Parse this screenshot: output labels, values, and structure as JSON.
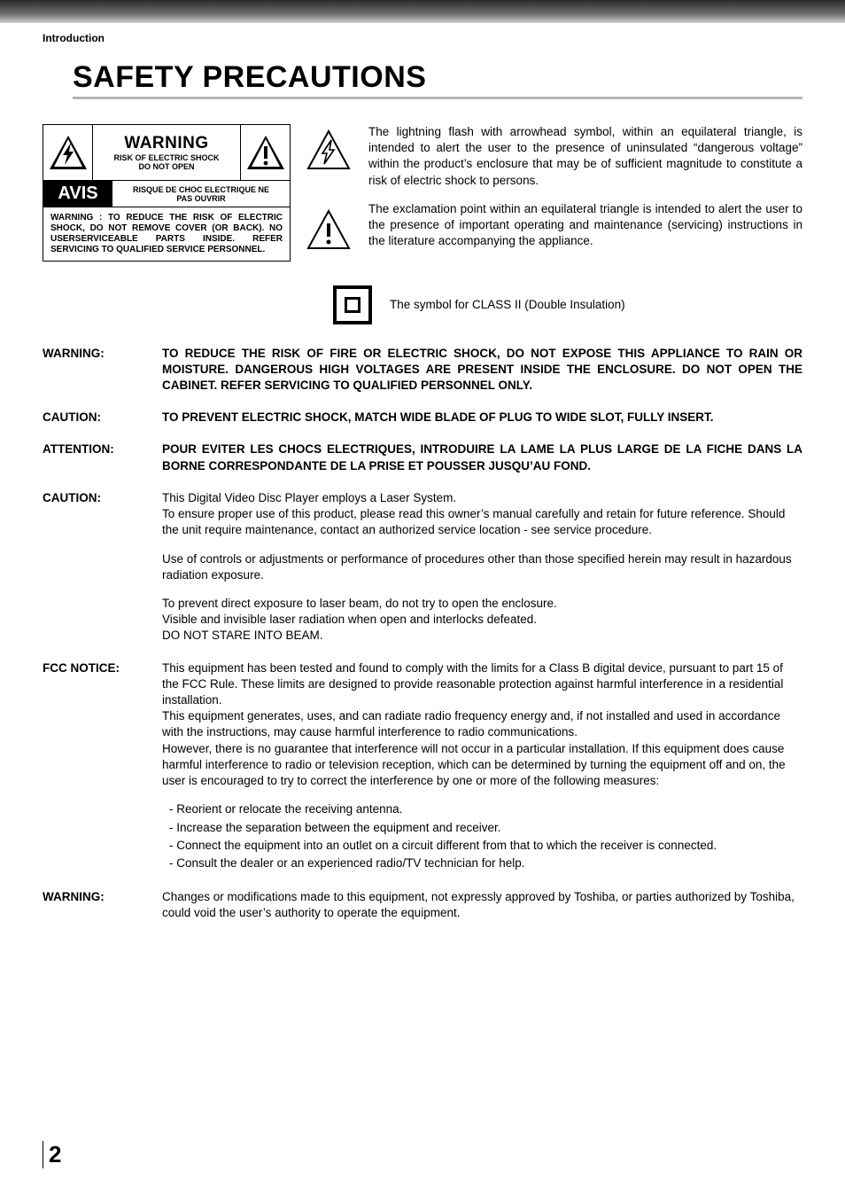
{
  "header": {
    "section_label": "Introduction",
    "title": "SAFETY PRECAUTIONS"
  },
  "warning_box": {
    "top_center": {
      "l1": "WARNING",
      "l2": "RISK OF ELECTRIC SHOCK",
      "l3": "DO NOT OPEN"
    },
    "mid": {
      "avis": "AVIS",
      "l1": "RISQUE DE CHOC ELECTRIQUE NE",
      "l2": "PAS OUVRIR"
    },
    "bottom": "WARNING : TO REDUCE THE RISK OF ELECTRIC SHOCK, DO NOT REMOVE COVER (OR BACK). NO USERSERVICEABLE PARTS INSIDE. REFER SERVICING TO QUALIFIED SERVICE PERSONNEL."
  },
  "side_paragraphs": {
    "p1": "The lightning flash with arrowhead symbol, within an equilateral triangle, is intended to alert the user to the presence of uninsulated “dangerous voltage” within the product’s enclosure that may be of sufficient magnitude to constitute a risk of electric shock to persons.",
    "p2": "The exclamation point within an equilateral triangle is intended to alert the user to the presence of important operating and maintenance (servicing) instructions in the literature accompanying the appliance."
  },
  "class2": "The symbol for CLASS II (Double Insulation)",
  "defs": [
    {
      "label": "WARNING:",
      "bold": true,
      "paras": [
        "TO REDUCE THE RISK OF FIRE OR ELECTRIC SHOCK, DO NOT EXPOSE THIS APPLIANCE TO RAIN OR MOISTURE. DANGEROUS HIGH VOLTAGES ARE PRESENT INSIDE THE ENCLOSURE. DO NOT OPEN THE CABINET. REFER SERVICING TO QUALIFIED PERSONNEL ONLY."
      ]
    },
    {
      "label": "CAUTION:",
      "bold": true,
      "paras": [
        "TO PREVENT ELECTRIC SHOCK, MATCH WIDE BLADE OF PLUG TO WIDE SLOT, FULLY INSERT."
      ]
    },
    {
      "label": "ATTENTION:",
      "bold": true,
      "paras": [
        "POUR EVITER LES CHOCS ELECTRIQUES, INTRODUIRE LA LAME LA PLUS LARGE DE LA FICHE DANS LA BORNE CORRESPONDANTE DE LA PRISE ET POUSSER JUSQU’AU FOND."
      ]
    },
    {
      "label": "CAUTION:",
      "bold": false,
      "paras": [
        "This Digital Video Disc Player employs a Laser System.\nTo ensure proper use of this product, please read this owner’s manual carefully and retain for future reference. Should the unit require maintenance, contact an authorized service location - see service procedure.",
        "Use of controls or adjustments or performance of procedures other than those specified herein may result in hazardous radiation exposure.",
        "To prevent direct exposure to laser beam, do not try to open the enclosure.\nVisible and invisible laser radiation when open and interlocks defeated.\nDO NOT STARE INTO BEAM."
      ]
    },
    {
      "label": "FCC NOTICE:",
      "bold": false,
      "paras": [
        "This equipment has been tested and found to comply with the limits for a Class B digital device, pursuant to part 15 of the FCC Rule. These limits are designed to provide reasonable protection against harmful interference in a residential installation.\nThis equipment generates, uses, and can radiate radio frequency energy and, if not installed and used in accordance with the instructions, may cause harmful interference to radio communications.\nHowever, there is no guarantee that interference will not occur in a particular installation. If this equipment does cause harmful interference to radio or television reception, which can be determined by turning the equipment off and on, the user is encouraged to try to correct the interference by one or more of the following measures:"
      ],
      "bullets": [
        "Reorient or relocate the receiving antenna.",
        "Increase the separation between the equipment and receiver.",
        "Connect the equipment into an outlet on a circuit different from that to which the receiver is connected.",
        "Consult the dealer or an experienced radio/TV technician for help."
      ]
    },
    {
      "label": "WARNING:",
      "bold": false,
      "paras": [
        "Changes or modifications made to this equipment, not expressly approved by Toshiba, or parties authorized by Toshiba, could void the user’s authority to operate the equipment."
      ]
    }
  ],
  "page_number": "2",
  "colors": {
    "rule": "#b5b5b5",
    "gradient_top": "#2a2a2a",
    "gradient_mid": "#6e6e6e",
    "gradient_bot": "#cfcfcf"
  }
}
